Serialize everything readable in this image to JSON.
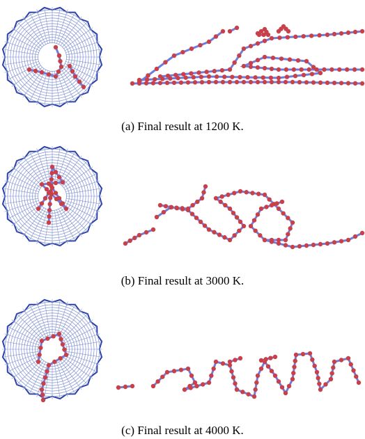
{
  "panels": [
    {
      "caption": "(a) Final result at 1200 K."
    },
    {
      "caption": "(b) Final result at 3000 K."
    },
    {
      "caption": "(c) Final result at 4000 K."
    }
  ]
}
